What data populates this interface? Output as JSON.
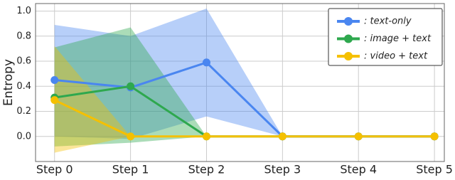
{
  "chart_data": {
    "type": "line",
    "ylabel": "Entropy",
    "x": [
      0,
      1,
      2,
      3,
      4,
      5
    ],
    "xlim": [
      -0.25,
      5.13
    ],
    "xticks": [
      {
        "value": 0,
        "label": "Step 0"
      },
      {
        "value": 1,
        "label": "Step 1"
      },
      {
        "value": 2,
        "label": "Step 2"
      },
      {
        "value": 3,
        "label": "Step 3"
      },
      {
        "value": 4,
        "label": "Step 4"
      },
      {
        "value": 5,
        "label": "Step 5"
      }
    ],
    "ylim": [
      -0.2,
      1.06
    ],
    "yticks": [
      {
        "value": 0,
        "label": "0.0"
      },
      {
        "value": 0.2,
        "label": "0.2"
      },
      {
        "value": 0.4,
        "label": "0.4"
      },
      {
        "value": 0.6,
        "label": "0.6"
      },
      {
        "value": 0.8,
        "label": "0.8"
      },
      {
        "value": 1,
        "label": "1.0"
      }
    ],
    "grid": true,
    "legend": "upper right",
    "series": [
      {
        "name": ": text-only",
        "color": "#4a86f0",
        "values": [
          0.45,
          0.39,
          0.59,
          0,
          0,
          0
        ],
        "upper": [
          0.89,
          0.8,
          1.02,
          0,
          0,
          0
        ],
        "lower": [
          0.0,
          -0.02,
          0.16,
          0,
          0,
          0
        ]
      },
      {
        "name": ": image + text",
        "color": "#2ea84e",
        "values": [
          0.31,
          0.4,
          0.0,
          0,
          0,
          0
        ],
        "upper": [
          0.71,
          0.87,
          0.0,
          0,
          0,
          0
        ],
        "lower": [
          -0.08,
          -0.05,
          0.0,
          0,
          0,
          0
        ]
      },
      {
        "name": ": video + text",
        "color": "#f5c000",
        "values": [
          0.29,
          0.0,
          0.0,
          0,
          0,
          0
        ],
        "upper": [
          0.72,
          0.0,
          0.0,
          0,
          0,
          0
        ],
        "lower": [
          -0.13,
          0.0,
          0.0,
          0,
          0,
          0
        ]
      }
    ]
  }
}
